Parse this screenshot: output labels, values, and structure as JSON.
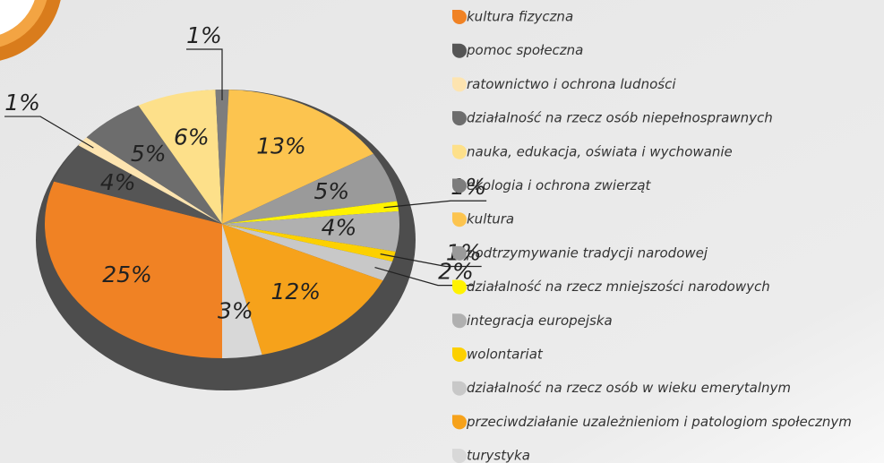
{
  "chart_data": {
    "type": "pie",
    "categories": [
      "kultura fizyczna",
      "pomoc społeczna",
      "ratownictwo i ochrona ludności",
      "działalność na rzecz osób niepełnosprawnych",
      "nauka, edukacja, oświata i wychowanie",
      "ekologia i ochrona zwierząt",
      "kultura",
      "podtrzymywanie tradycji narodowej",
      "działalność na rzecz mniejszości narodowych",
      "integracja europejska",
      "wolontariat",
      "działalność na rzecz osób w wieku emerytalnym",
      "przeciwdziałanie uzależnieniom i patologiom społecznym",
      "turystyka"
    ],
    "values": [
      25,
      4,
      1,
      5,
      6,
      1,
      13,
      5,
      1,
      4,
      1,
      2,
      12,
      3
    ],
    "value_labels": [
      "25%",
      "4%",
      "1%",
      "5%",
      "6%",
      "1%",
      "13%",
      "5%",
      "1%",
      "4%",
      "1%",
      "2%",
      "12%",
      "3%"
    ],
    "colors": [
      "#f08224",
      "#555555",
      "#fde4b0",
      "#6d6d6d",
      "#fde08a",
      "#7d7d7d",
      "#fcc44f",
      "#9a9a9a",
      "#fff200",
      "#b0b0b0",
      "#fcd000",
      "#c8c8c8",
      "#f6a21b",
      "#d8d8d8"
    ],
    "legend": "right"
  }
}
